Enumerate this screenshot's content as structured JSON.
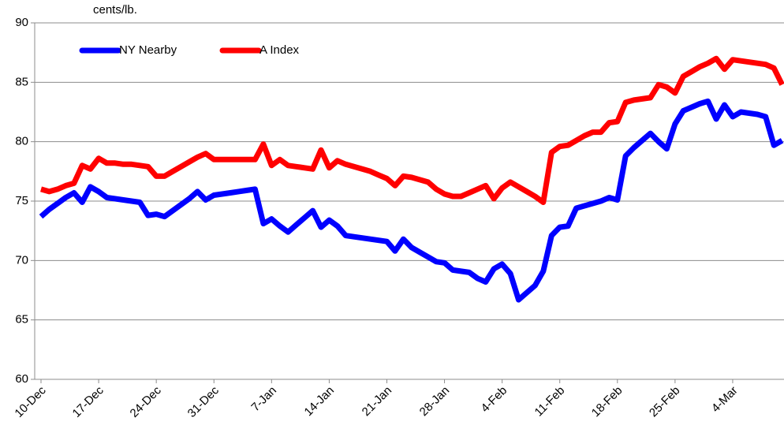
{
  "chart_data": {
    "type": "line",
    "y_label": "cents/lb.",
    "categories": [
      "10-Dec",
      null,
      null,
      null,
      null,
      null,
      null,
      "17-Dec",
      null,
      null,
      null,
      null,
      null,
      null,
      "24-Dec",
      null,
      null,
      null,
      null,
      null,
      null,
      "31-Dec",
      null,
      null,
      null,
      null,
      null,
      null,
      "7-Jan",
      null,
      null,
      null,
      null,
      null,
      null,
      "14-Jan",
      null,
      null,
      null,
      null,
      null,
      null,
      "21-Jan",
      null,
      null,
      null,
      null,
      null,
      null,
      "28-Jan",
      null,
      null,
      null,
      null,
      null,
      null,
      "4-Feb",
      null,
      null,
      null,
      null,
      null,
      null,
      "11-Feb",
      null,
      null,
      null,
      null,
      null,
      null,
      "18-Feb",
      null,
      null,
      null,
      null,
      null,
      null,
      "25-Feb",
      null,
      null,
      null,
      null,
      null,
      null,
      "4-Mar",
      null,
      null,
      null,
      null,
      null,
      null
    ],
    "series": [
      {
        "name": "NY Nearby",
        "color": "#0000ff",
        "values": [
          73.7,
          74.3,
          74.8,
          75.3,
          75.7,
          74.9,
          76.2,
          75.8,
          75.3,
          75.2,
          75.1,
          75.0,
          74.9,
          73.8,
          73.9,
          73.7,
          74.2,
          74.7,
          75.2,
          75.8,
          75.1,
          75.5,
          75.6,
          75.7,
          75.8,
          75.9,
          76.0,
          73.1,
          73.5,
          72.9,
          72.4,
          73.0,
          73.6,
          74.2,
          72.8,
          73.4,
          72.9,
          72.1,
          72.0,
          71.9,
          71.8,
          71.7,
          71.6,
          70.8,
          71.8,
          71.1,
          70.7,
          70.3,
          69.9,
          69.8,
          69.2,
          69.1,
          69.0,
          68.5,
          68.2,
          69.3,
          69.7,
          68.9,
          66.7,
          67.3,
          67.9,
          69.1,
          72.1,
          72.8,
          72.9,
          74.4,
          74.6,
          74.8,
          75.0,
          75.3,
          75.1,
          78.8,
          79.5,
          80.1,
          80.7,
          80.0,
          79.4,
          81.5,
          82.6,
          82.9,
          83.2,
          83.4,
          81.9,
          83.1,
          82.1,
          82.5,
          82.4,
          82.3,
          82.1,
          79.7,
          80.1
        ]
      },
      {
        "name": "A Index",
        "color": "#ff0000",
        "values": [
          76.0,
          75.8,
          76.0,
          76.3,
          76.5,
          78.0,
          77.7,
          78.6,
          78.2,
          78.2,
          78.1,
          78.1,
          78.0,
          77.9,
          77.1,
          77.1,
          77.5,
          77.9,
          78.3,
          78.7,
          79.0,
          78.5,
          78.5,
          78.5,
          78.5,
          78.5,
          78.5,
          79.8,
          78.0,
          78.5,
          78.0,
          77.9,
          77.8,
          77.7,
          79.3,
          77.8,
          78.4,
          78.1,
          77.9,
          77.7,
          77.5,
          77.2,
          76.9,
          76.3,
          77.1,
          77.0,
          76.8,
          76.6,
          76.0,
          75.6,
          75.4,
          75.4,
          75.7,
          76.0,
          76.3,
          75.2,
          76.1,
          76.6,
          76.2,
          75.8,
          75.4,
          74.9,
          79.1,
          79.6,
          79.7,
          80.1,
          80.5,
          80.8,
          80.8,
          81.6,
          81.7,
          83.3,
          83.5,
          83.6,
          83.7,
          84.8,
          84.6,
          84.1,
          85.5,
          85.9,
          86.3,
          86.6,
          87.0,
          86.1,
          86.9,
          86.8,
          86.7,
          86.6,
          86.5,
          86.2,
          84.8
        ]
      }
    ],
    "ylim": [
      60,
      90
    ],
    "yticks": [
      60,
      65,
      70,
      75,
      80,
      85,
      90
    ],
    "grid": true,
    "legend": "upper left"
  }
}
